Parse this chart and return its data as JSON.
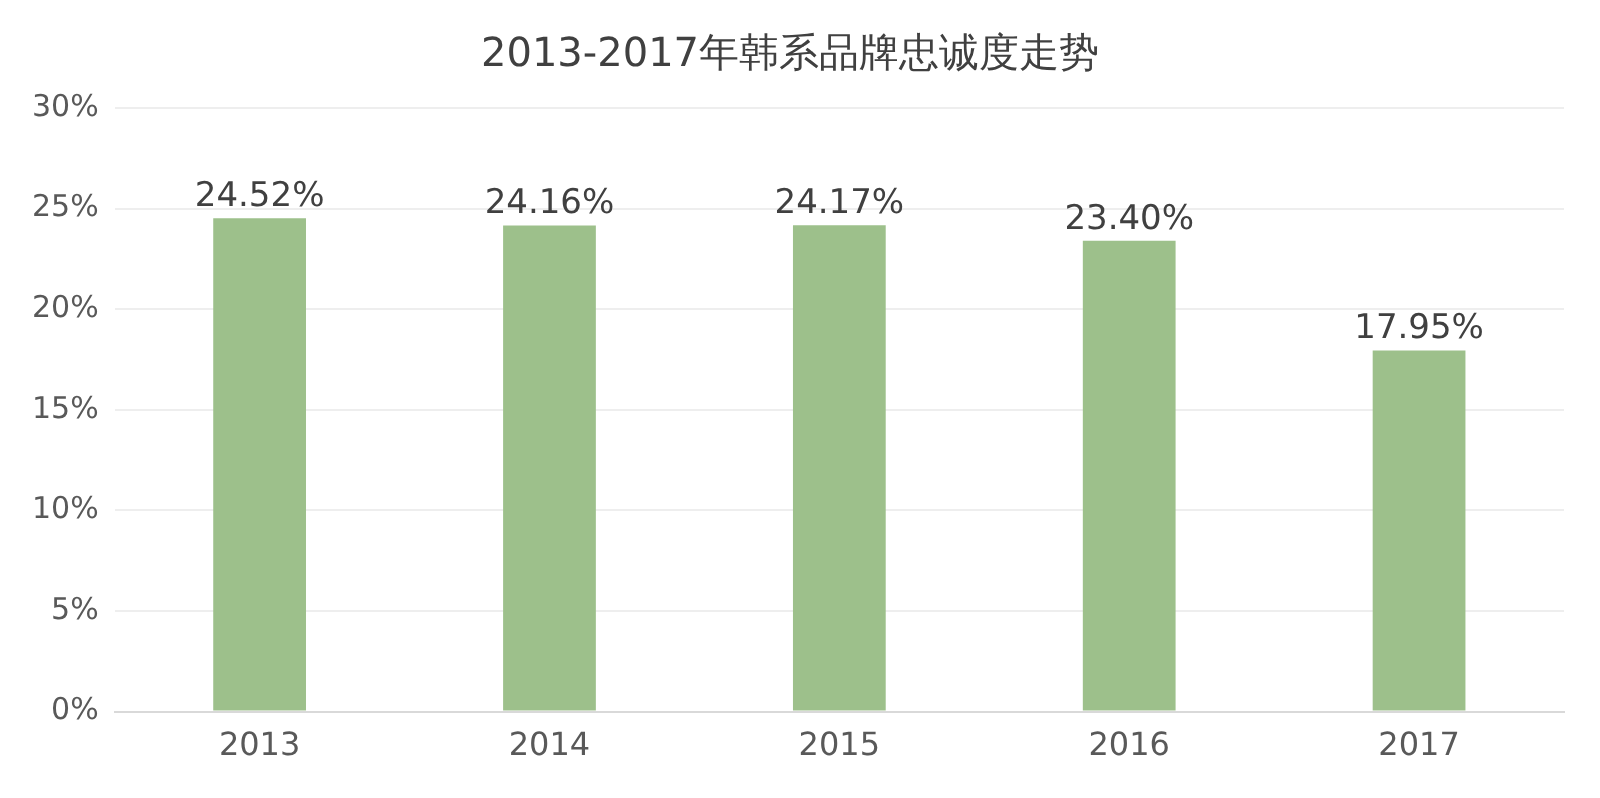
{
  "chart_data": {
    "type": "bar",
    "title": "2013-2017年韩系品牌忠诚度走势",
    "categories": [
      "2013",
      "2014",
      "2015",
      "2016",
      "2017"
    ],
    "values": [
      24.52,
      24.16,
      24.17,
      23.4,
      17.95
    ],
    "value_labels": [
      "24.52%",
      "24.16%",
      "24.17%",
      "23.40%",
      "17.95%"
    ],
    "color": "#9dc08b",
    "ylim": [
      0,
      30
    ],
    "yticks": [
      {
        "value": 0,
        "label": "0%"
      },
      {
        "value": 5,
        "label": "5%"
      },
      {
        "value": 10,
        "label": "10%"
      },
      {
        "value": 15,
        "label": "15%"
      },
      {
        "value": 20,
        "label": "20%"
      },
      {
        "value": 25,
        "label": "25%"
      },
      {
        "value": 30,
        "label": "30%"
      }
    ],
    "grid": "y",
    "legend": false
  }
}
